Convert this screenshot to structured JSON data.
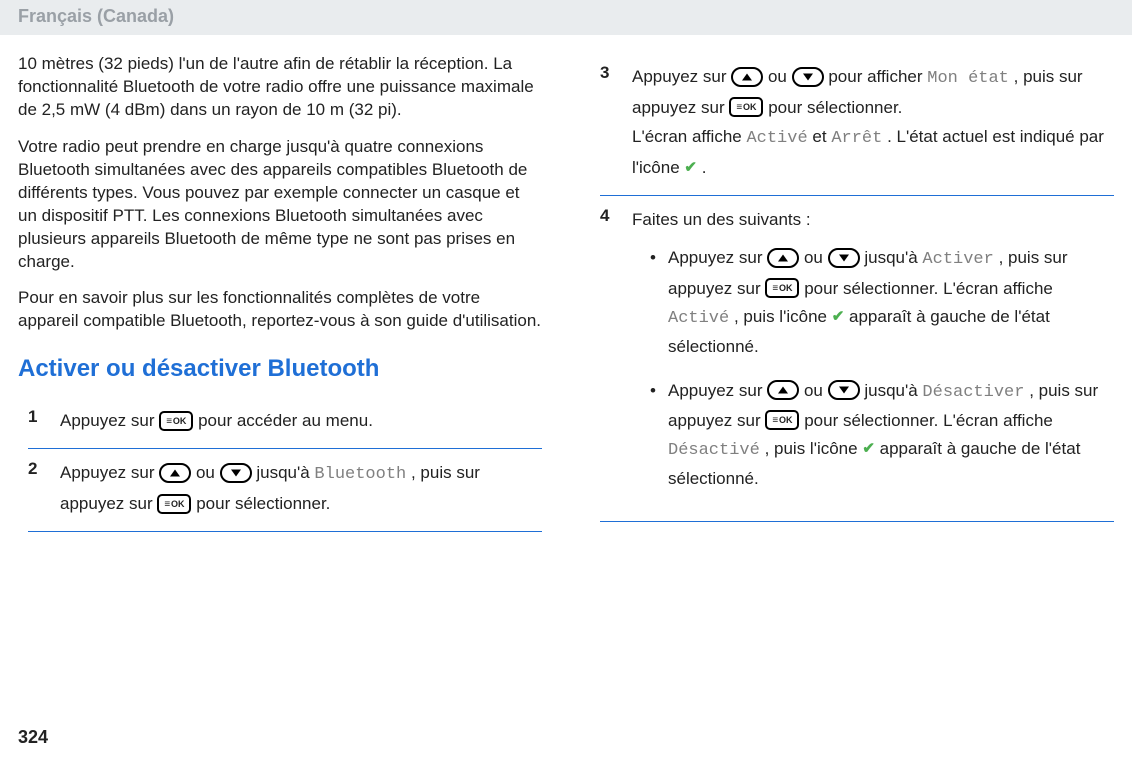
{
  "page": {
    "language_header": "Français (Canada)",
    "page_number": "324"
  },
  "text": {
    "p1": "10 mètres (32 pieds) l'un de l'autre afin de rétablir la réception. La fonctionnalité Bluetooth de votre radio offre une puissance maximale de 2,5 mW (4 dBm) dans un rayon de 10 m (32 pi).",
    "p2": "Votre radio peut prendre en charge jusqu'à quatre connexions Bluetooth simultanées avec des appareils compatibles Bluetooth de différents types. Vous pouvez par exemple connecter un casque et un dispositif PTT. Les connexions Bluetooth simultanées avec plusieurs appareils Bluetooth de même type ne sont pas prises en charge.",
    "p3": "Pour en savoir plus sur les fonctionnalités complètes de votre appareil compatible Bluetooth, reportez-vous à son guide d'utilisation.",
    "heading": "Activer ou désactiver Bluetooth",
    "step1_a": "Appuyez sur ",
    "step1_b": " pour accéder au menu.",
    "step2_a": "Appuyez sur ",
    "step2_b": " ou ",
    "step2_c": " jusqu'à ",
    "step2_bt": "Bluetooth",
    "step2_d": ", puis sur appuyez sur ",
    "step2_e": " pour sélectionner.",
    "step3_a": "Appuyez sur ",
    "step3_b": " ou ",
    "step3_c": " pour afficher ",
    "step3_mon": "Mon état",
    "step3_d": ", puis sur appuyez sur ",
    "step3_e": " pour sélectionner.",
    "step3_f1": "L'écran affiche ",
    "step3_on": "Activé",
    "step3_and": " et ",
    "step3_off": "Arrêt",
    "step3_f2": ". L'état actuel est indiqué par l'icône ",
    "step3_f3": ".",
    "step4_a": "Faites un des suivants :",
    "b1_a": "Appuyez sur ",
    "b1_b": " ou ",
    "b1_c": " jusqu'à ",
    "b1_act": "Activer",
    "b1_d": ", puis sur appuyez sur ",
    "b1_e": " pour sélectionner. L'écran affiche ",
    "b1_act2": "Activé",
    "b1_f": ", puis l'icône ",
    "b1_g": " apparaît à gauche de l'état sélectionné.",
    "b2_a": "Appuyez sur ",
    "b2_b": " ou ",
    "b2_c": " jusqu'à ",
    "b2_deact": "Désactiver",
    "b2_d": ", puis sur appuyez sur ",
    "b2_e": " pour sélectionner. L'écran affiche ",
    "b2_deact2": "Désactivé",
    "b2_f": ", puis l'icône ",
    "b2_g": " apparaît à gauche de l'état sélectionné."
  },
  "icons": {
    "ok_label": "OK",
    "check_glyph": "✔"
  },
  "colors": {
    "accent": "#1f6fd6",
    "mono_text": "#808080",
    "lang_text": "#9aa0a6",
    "lang_bg": "#e9ecee",
    "check": "#4caf50",
    "body": "#222222"
  }
}
